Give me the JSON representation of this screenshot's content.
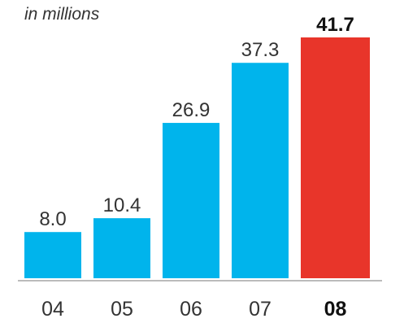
{
  "chart_data": {
    "type": "bar",
    "subtitle": "in millions",
    "categories": [
      "04",
      "05",
      "06",
      "07",
      "08"
    ],
    "values": [
      8.0,
      10.4,
      26.9,
      37.3,
      41.7
    ],
    "value_labels": [
      "8.0",
      "10.4",
      "26.9",
      "37.3",
      "41.7"
    ],
    "highlight_index": 4,
    "colors": {
      "bar": "#00b4ec",
      "highlight_bar": "#e8352a",
      "axis": "#bbbbbb",
      "text": "#333333"
    },
    "ylim": [
      0,
      41.7
    ],
    "grid": false
  }
}
